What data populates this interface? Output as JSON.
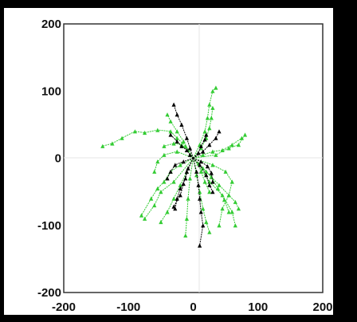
{
  "chart_data": {
    "type": "scatter",
    "title": "",
    "xlabel": "",
    "ylabel": "",
    "xlim": [
      -200,
      200
    ],
    "ylim": [
      -200,
      200
    ],
    "xticks": [
      -200,
      -100,
      0,
      100,
      200
    ],
    "yticks": [
      200,
      100,
      0,
      -100,
      -200
    ],
    "xtick_labels": [
      "-200",
      "-100",
      "0",
      "100",
      "200"
    ],
    "ytick_labels": [
      "200",
      "100",
      "0",
      "-100",
      "-200"
    ],
    "grid": "zero-lines",
    "legend": "none",
    "series": [
      {
        "color": "#33cc33",
        "marker": "triangle",
        "tracks": [
          [
            [
              0,
              0
            ],
            [
              -12,
              18
            ],
            [
              -25,
              30
            ],
            [
              -35,
              40
            ],
            [
              -55,
              42
            ],
            [
              -75,
              38
            ],
            [
              -90,
              40
            ],
            [
              -110,
              30
            ],
            [
              -125,
              22
            ],
            [
              -140,
              18
            ]
          ],
          [
            [
              0,
              0
            ],
            [
              10,
              20
            ],
            [
              18,
              40
            ],
            [
              22,
              60
            ],
            [
              25,
              80
            ],
            [
              30,
              100
            ],
            [
              35,
              105
            ]
          ],
          [
            [
              0,
              0
            ],
            [
              12,
              15
            ],
            [
              20,
              30
            ],
            [
              25,
              45
            ],
            [
              28,
              60
            ],
            [
              30,
              75
            ]
          ],
          [
            [
              0,
              0
            ],
            [
              15,
              5
            ],
            [
              30,
              10
            ],
            [
              45,
              12
            ],
            [
              60,
              20
            ],
            [
              75,
              30
            ]
          ],
          [
            [
              0,
              0
            ],
            [
              -10,
              -20
            ],
            [
              -20,
              -40
            ],
            [
              -30,
              -60
            ],
            [
              -40,
              -80
            ],
            [
              -50,
              -95
            ]
          ],
          [
            [
              0,
              0
            ],
            [
              5,
              -25
            ],
            [
              10,
              -50
            ],
            [
              15,
              -75
            ],
            [
              20,
              -95
            ],
            [
              25,
              -110
            ]
          ],
          [
            [
              0,
              0
            ],
            [
              20,
              -20
            ],
            [
              40,
              -40
            ],
            [
              55,
              -55
            ],
            [
              65,
              -65
            ],
            [
              70,
              -75
            ]
          ],
          [
            [
              0,
              0
            ],
            [
              -20,
              -10
            ],
            [
              -35,
              -20
            ],
            [
              -45,
              -35
            ],
            [
              -55,
              -45
            ],
            [
              -65,
              -60
            ],
            [
              -80,
              -85
            ]
          ],
          [
            [
              0,
              0
            ],
            [
              30,
              -10
            ],
            [
              50,
              -20
            ],
            [
              60,
              -35
            ],
            [
              55,
              -55
            ],
            [
              45,
              -75
            ],
            [
              40,
              -100
            ]
          ],
          [
            [
              0,
              0
            ],
            [
              -5,
              -30
            ],
            [
              -8,
              -60
            ],
            [
              -10,
              -90
            ],
            [
              -12,
              -115
            ]
          ],
          [
            [
              0,
              0
            ],
            [
              -25,
              10
            ],
            [
              -45,
              5
            ],
            [
              -55,
              -5
            ],
            [
              -60,
              -20
            ]
          ],
          [
            [
              0,
              0
            ],
            [
              35,
              5
            ],
            [
              55,
              15
            ],
            [
              70,
              20
            ],
            [
              80,
              35
            ]
          ],
          [
            [
              0,
              0
            ],
            [
              -15,
              25
            ],
            [
              -25,
              40
            ],
            [
              -35,
              55
            ],
            [
              -40,
              65
            ]
          ],
          [
            [
              0,
              0
            ],
            [
              25,
              -35
            ],
            [
              45,
              -55
            ],
            [
              60,
              -80
            ],
            [
              65,
              -100
            ]
          ],
          [
            [
              0,
              0
            ],
            [
              -30,
              -35
            ],
            [
              -50,
              -50
            ],
            [
              -60,
              -70
            ],
            [
              -75,
              -90
            ]
          ],
          [
            [
              0,
              0
            ],
            [
              15,
              -15
            ],
            [
              28,
              -28
            ],
            [
              38,
              -45
            ],
            [
              48,
              -62
            ],
            [
              55,
              -80
            ]
          ],
          [
            [
              0,
              0
            ],
            [
              -8,
              12
            ],
            [
              -18,
              20
            ],
            [
              -30,
              22
            ],
            [
              -45,
              18
            ]
          ],
          [
            [
              0,
              0
            ],
            [
              8,
              -8
            ],
            [
              12,
              -20
            ],
            [
              18,
              -35
            ],
            [
              25,
              -50
            ]
          ]
        ]
      },
      {
        "color": "#000000",
        "marker": "triangle",
        "tracks": [
          [
            [
              0,
              0
            ],
            [
              -5,
              15
            ],
            [
              -10,
              30
            ],
            [
              -18,
              50
            ],
            [
              -25,
              65
            ],
            [
              -30,
              80
            ]
          ],
          [
            [
              0,
              0
            ],
            [
              5,
              -20
            ],
            [
              8,
              -40
            ],
            [
              10,
              -60
            ],
            [
              12,
              -80
            ],
            [
              15,
              -100
            ],
            [
              10,
              -130
            ]
          ],
          [
            [
              0,
              0
            ],
            [
              -8,
              -15
            ],
            [
              -12,
              -30
            ],
            [
              -20,
              -45
            ],
            [
              -25,
              -60
            ],
            [
              -28,
              -75
            ]
          ],
          [
            [
              0,
              0
            ],
            [
              15,
              10
            ],
            [
              25,
              20
            ],
            [
              35,
              30
            ],
            [
              40,
              40
            ]
          ],
          [
            [
              0,
              0
            ],
            [
              -15,
              -5
            ],
            [
              -28,
              -10
            ],
            [
              -35,
              -20
            ],
            [
              -40,
              -30
            ]
          ],
          [
            [
              0,
              0
            ],
            [
              10,
              -10
            ],
            [
              20,
              -25
            ],
            [
              25,
              -40
            ],
            [
              30,
              -50
            ]
          ],
          [
            [
              0,
              0
            ],
            [
              -5,
              5
            ],
            [
              -10,
              12
            ],
            [
              -18,
              18
            ],
            [
              -25,
              25
            ],
            [
              -35,
              35
            ]
          ],
          [
            [
              0,
              0
            ],
            [
              8,
              8
            ],
            [
              12,
              18
            ],
            [
              18,
              28
            ],
            [
              20,
              35
            ]
          ],
          [
            [
              0,
              0
            ],
            [
              -10,
              -20
            ],
            [
              -15,
              -38
            ],
            [
              -20,
              -55
            ],
            [
              -30,
              -72
            ]
          ],
          [
            [
              0,
              0
            ],
            [
              12,
              -5
            ],
            [
              22,
              -12
            ],
            [
              28,
              -22
            ],
            [
              30,
              -35
            ]
          ]
        ]
      }
    ]
  }
}
